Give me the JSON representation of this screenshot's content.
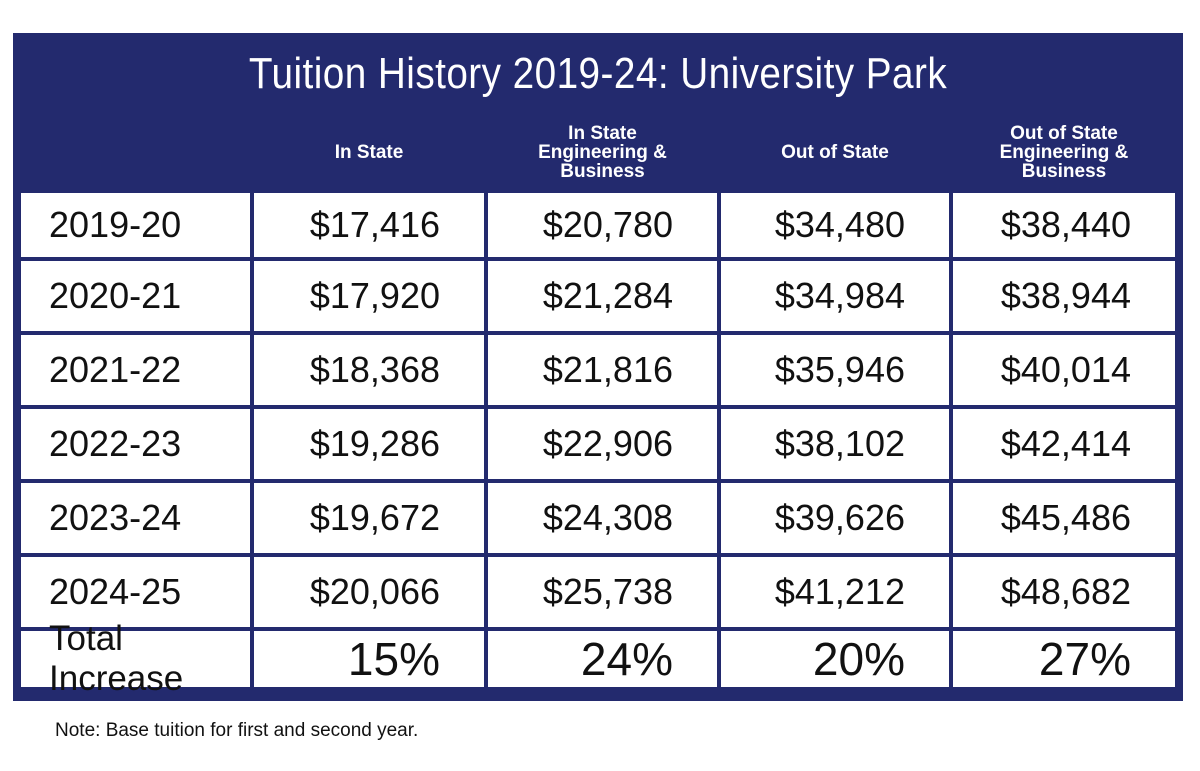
{
  "chart_data": {
    "type": "table",
    "title": "Tuition History 2019-24: University Park",
    "columns": [
      "",
      "In State",
      "In State\nEngineering &\nBusiness",
      "Out of State",
      "Out of State\nEngineering &\nBusiness"
    ],
    "rows": [
      {
        "year": "2019-20",
        "values": [
          "$17,416",
          "$20,780",
          "$34,480",
          "$38,440"
        ]
      },
      {
        "year": "2020-21",
        "values": [
          "$17,920",
          "$21,284",
          "$34,984",
          "$38,944"
        ]
      },
      {
        "year": "2021-22",
        "values": [
          "$18,368",
          "$21,816",
          "$35,946",
          "$40,014"
        ]
      },
      {
        "year": "2022-23",
        "values": [
          "$19,286",
          "$22,906",
          "$38,102",
          "$42,414"
        ]
      },
      {
        "year": "2023-24",
        "values": [
          "$19,672",
          "$24,308",
          "$39,626",
          "$45,486"
        ]
      },
      {
        "year": "2024-25",
        "values": [
          "$20,066",
          "$25,738",
          "$41,212",
          "$48,682"
        ]
      }
    ],
    "total_row": {
      "label": "Total Increase",
      "values": [
        "15%",
        "24%",
        "20%",
        "27%"
      ]
    },
    "note": "Note: Base tuition for first and second year."
  },
  "colors": {
    "header_bg": "#232a6e",
    "cell_bg": "#ffffff",
    "text": "#111111"
  }
}
